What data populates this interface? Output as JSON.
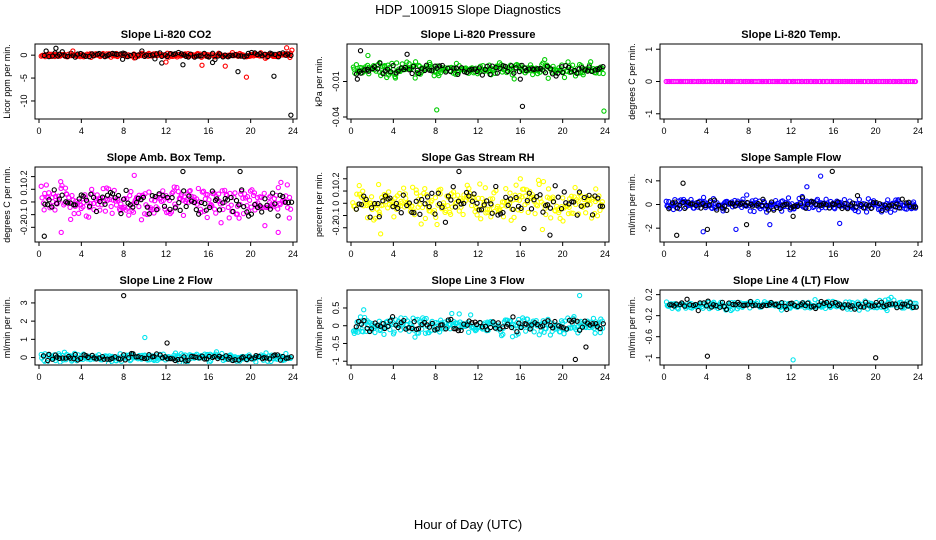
{
  "title": "HDP_100915  Slope Diagnostics",
  "xlabel": "Hour of Day (UTC)",
  "colors": {
    "black_points": "#000000",
    "red": "#ff0000",
    "green": "#00cc00",
    "magenta": "#ff00ff",
    "yellow": "#ffff00",
    "blue": "#0000ff",
    "cyan": "#00e5ee"
  },
  "chart_data": [
    {
      "type": "scatter",
      "title": "Slope Li-820 CO2",
      "ylabel": "Licor ppm per min.",
      "xlim": [
        0,
        24
      ],
      "ylim": [
        -13.5,
        2
      ],
      "yticks": [
        -10,
        -5,
        0
      ],
      "xticks": [
        0,
        4,
        8,
        12,
        16,
        20,
        24
      ],
      "xtick_labels": [
        "0",
        "4",
        "8",
        "12",
        "16",
        "20",
        "24"
      ],
      "color": "#ff0000",
      "spread": 0.35,
      "black_spread": 0.6,
      "outliers": [
        [
          1.6,
          1.5
        ],
        [
          3.2,
          0.9
        ],
        [
          7.9,
          -0.9
        ],
        [
          9.0,
          -0.6
        ],
        [
          11.6,
          -1.7
        ],
        [
          12.0,
          -1.5
        ],
        [
          13.6,
          -2.1
        ],
        [
          15.4,
          -2.2
        ],
        [
          16.4,
          -1.6
        ],
        [
          17.6,
          -2.4
        ],
        [
          18.8,
          -3.6
        ],
        [
          19.6,
          -4.8
        ],
        [
          22.2,
          -4.6
        ],
        [
          23.4,
          1.6
        ],
        [
          23.8,
          -13.1
        ],
        [
          23.9,
          1.1
        ]
      ]
    },
    {
      "type": "scatter",
      "title": "Slope Li-820 Pressure",
      "ylabel": "kPa per min.",
      "xlim": [
        0,
        24
      ],
      "ylim": [
        -0.04,
        0.02
      ],
      "yticks": [
        -0.04,
        -0.01
      ],
      "xticks": [
        0,
        4,
        8,
        12,
        16,
        20,
        24
      ],
      "xtick_labels": [
        "0",
        "4",
        "8",
        "12",
        "16",
        "20",
        "24"
      ],
      "color": "#00cc00",
      "spread": 0.005,
      "black_spread": 0.004,
      "outliers": [
        [
          0.9,
          0.016
        ],
        [
          1.6,
          0.012
        ],
        [
          5.3,
          0.013
        ],
        [
          8.1,
          -0.034
        ],
        [
          16.2,
          -0.031
        ],
        [
          23.9,
          -0.035
        ],
        [
          0.6,
          -0.008
        ],
        [
          4.2,
          -0.007
        ],
        [
          16.0,
          -0.008
        ]
      ]
    },
    {
      "type": "scatter",
      "title": "Slope Li-820 Temp.",
      "ylabel": "degrees C per min.",
      "xlim": [
        0,
        24
      ],
      "ylim": [
        -1.1,
        1.1
      ],
      "yticks": [
        -1.0,
        0.0,
        1.0
      ],
      "xticks": [
        0,
        4,
        8,
        12,
        16,
        20,
        24
      ],
      "xtick_labels": [
        "0",
        "4",
        "8",
        "12",
        "16",
        "20",
        "24"
      ],
      "color": "#ff00ff",
      "spread": 0.0,
      "black_spread": 0.0,
      "outliers": []
    },
    {
      "type": "scatter",
      "title": "Slope Amb. Box Temp.",
      "ylabel": "degrees C per min.",
      "xlim": [
        0,
        24
      ],
      "ylim": [
        -0.3,
        0.26
      ],
      "yticks": [
        -0.2,
        -0.1,
        0.0,
        0.1,
        0.2
      ],
      "xticks": [
        0,
        4,
        8,
        12,
        16,
        20,
        24
      ],
      "xtick_labels": [
        "0",
        "4",
        "8",
        "12",
        "16",
        "20",
        "24"
      ],
      "color": "#ff00ff",
      "spread": 0.12,
      "black_spread": 0.09,
      "outliers": [
        [
          0.5,
          -0.27
        ],
        [
          2.1,
          -0.24
        ],
        [
          13.6,
          0.24
        ],
        [
          9.0,
          0.21
        ],
        [
          19.0,
          0.24
        ],
        [
          22.6,
          -0.24
        ]
      ]
    },
    {
      "type": "scatter",
      "title": "Slope Gas Stream RH",
      "ylabel": "percent per min.",
      "xlim": [
        0,
        24
      ],
      "ylim": [
        -0.3,
        0.28
      ],
      "yticks": [
        -0.2,
        -0.1,
        0.0,
        0.1,
        0.2
      ],
      "xticks": [
        0,
        4,
        8,
        12,
        16,
        20,
        24
      ],
      "xtick_labels": [
        "0",
        "4",
        "8",
        "12",
        "16",
        "20",
        "24"
      ],
      "color": "#ffff00",
      "spread": 0.13,
      "black_spread": 0.1,
      "outliers": [
        [
          10.2,
          0.26
        ],
        [
          2.8,
          -0.25
        ],
        [
          18.8,
          -0.26
        ],
        [
          16.0,
          0.2
        ]
      ]
    },
    {
      "type": "scatter",
      "title": "Slope Sample Flow",
      "ylabel": "ml/min per min.",
      "xlim": [
        0,
        24
      ],
      "ylim": [
        -3,
        3
      ],
      "yticks": [
        -2,
        0,
        2
      ],
      "xticks": [
        0,
        4,
        8,
        12,
        16,
        20,
        24
      ],
      "xtick_labels": [
        "0",
        "4",
        "8",
        "12",
        "16",
        "20",
        "24"
      ],
      "color": "#0000ff",
      "spread": 0.45,
      "black_spread": 0.4,
      "outliers": [
        [
          1.2,
          -2.6
        ],
        [
          3.7,
          -2.3
        ],
        [
          4.1,
          -2.1
        ],
        [
          6.8,
          -2.1
        ],
        [
          7.8,
          -1.7
        ],
        [
          10.0,
          -1.7
        ],
        [
          12.2,
          -1.0
        ],
        [
          14.8,
          2.4
        ],
        [
          15.9,
          2.8
        ],
        [
          16.6,
          -1.6
        ],
        [
          1.8,
          1.8
        ],
        [
          13.5,
          1.5
        ]
      ]
    },
    {
      "type": "scatter",
      "title": "Slope Line 2 Flow",
      "ylabel": "ml/min per min.",
      "xlim": [
        0,
        24
      ],
      "ylim": [
        -0.3,
        3.6
      ],
      "yticks": [
        0,
        1,
        2,
        3
      ],
      "xticks": [
        0,
        4,
        8,
        12,
        16,
        20,
        24
      ],
      "xtick_labels": [
        "0",
        "4",
        "8",
        "12",
        "16",
        "20",
        "24"
      ],
      "color": "#00e5ee",
      "spread": 0.2,
      "black_spread": 0.18,
      "outliers": [
        [
          8.0,
          3.4
        ],
        [
          10.0,
          1.1
        ],
        [
          12.1,
          0.8
        ]
      ]
    },
    {
      "type": "scatter",
      "title": "Slope Line 3 Flow",
      "ylabel": "ml/min per min.",
      "xlim": [
        0,
        24
      ],
      "ylim": [
        -1.05,
        0.95
      ],
      "yticks": [
        -1.0,
        -0.5,
        0.0,
        0.5
      ],
      "xticks": [
        0,
        4,
        8,
        12,
        16,
        20,
        24
      ],
      "xtick_labels": [
        "0",
        "4",
        "8",
        "12",
        "16",
        "20",
        "24"
      ],
      "color": "#00e5ee",
      "spread": 0.22,
      "black_spread": 0.18,
      "outliers": [
        [
          21.2,
          -0.95
        ],
        [
          21.6,
          0.85
        ],
        [
          22.2,
          -0.6
        ],
        [
          1.2,
          0.45
        ]
      ]
    },
    {
      "type": "scatter",
      "title": "Slope Line 4 (LT) Flow",
      "ylabel": "ml/min per min.",
      "xlim": [
        0,
        24
      ],
      "ylim": [
        -1.1,
        0.25
      ],
      "yticks": [
        -1.0,
        -0.6,
        -0.2,
        0.2
      ],
      "xticks": [
        0,
        4,
        8,
        12,
        16,
        20,
        24
      ],
      "xtick_labels": [
        "0",
        "4",
        "8",
        "12",
        "16",
        "20",
        "24"
      ],
      "color": "#00e5ee",
      "spread": 0.07,
      "black_spread": 0.07,
      "outliers": [
        [
          4.1,
          -0.97
        ],
        [
          12.2,
          -1.04
        ],
        [
          20.0,
          -1.0
        ]
      ]
    }
  ]
}
